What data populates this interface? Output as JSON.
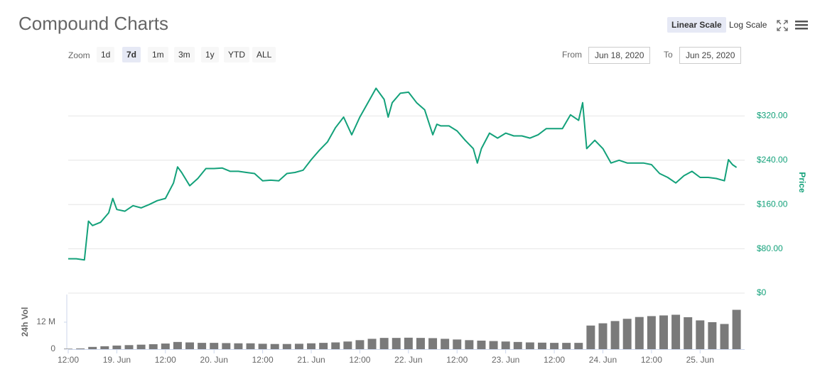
{
  "toolbar": {
    "scale_buttons": [
      "Linear Scale",
      "Log Scale"
    ],
    "zoom_label": "Zoom",
    "zoom_buttons": [
      "1d",
      "7d",
      "1m",
      "3m",
      "1y",
      "YTD",
      "ALL"
    ],
    "from_label": "From",
    "from_value": "Jun 18, 2020",
    "to_label": "To",
    "to_value": "Jun 25, 2020"
  },
  "chart_data": [
    {
      "type": "line",
      "title": "Compound Charts",
      "y_label": "Price",
      "color": "#13a17a",
      "grid": true,
      "xlim": [
        0,
        167
      ],
      "ylim": [
        0,
        400
      ],
      "yticks": [
        {
          "value": 0,
          "label": "$0"
        },
        {
          "value": 80,
          "label": "$80.00"
        },
        {
          "value": 160,
          "label": "$160.00"
        },
        {
          "value": 240,
          "label": "$240.00"
        },
        {
          "value": 320,
          "label": "$320.00"
        }
      ],
      "x": [
        0,
        2,
        4,
        5,
        6,
        8,
        10,
        11,
        12,
        14,
        16,
        18,
        20,
        22,
        24,
        26,
        27,
        28,
        30,
        32,
        34,
        36,
        38,
        40,
        42,
        44,
        46,
        48,
        50,
        52,
        54,
        56,
        58,
        60,
        62,
        64,
        66,
        68,
        70,
        72,
        74,
        76,
        78,
        79,
        80,
        82,
        84,
        86,
        88,
        90,
        91,
        92,
        94,
        96,
        98,
        100,
        101,
        102,
        104,
        106,
        108,
        110,
        112,
        114,
        116,
        118,
        120,
        122,
        124,
        126,
        127,
        128,
        130,
        132,
        134,
        136,
        138,
        140,
        142,
        144,
        146,
        148,
        150,
        152,
        154,
        156,
        158,
        160,
        162,
        163,
        164,
        165
      ],
      "values": [
        62,
        62,
        60,
        130,
        122,
        128,
        145,
        171,
        151,
        148,
        158,
        154,
        160,
        167,
        171,
        199,
        228,
        218,
        194,
        207,
        225,
        225,
        226,
        220,
        220,
        218,
        216,
        203,
        204,
        203,
        216,
        218,
        222,
        241,
        258,
        273,
        299,
        318,
        286,
        318,
        344,
        370,
        350,
        318,
        344,
        361,
        363,
        344,
        331,
        286,
        305,
        302,
        302,
        293,
        276,
        261,
        235,
        261,
        289,
        280,
        289,
        284,
        284,
        280,
        286,
        297,
        297,
        297,
        322,
        312,
        344,
        261,
        276,
        261,
        235,
        240,
        235,
        235,
        235,
        232,
        216,
        209,
        199,
        212,
        220,
        209,
        209,
        207,
        203,
        241,
        232,
        227
      ]
    },
    {
      "type": "bar",
      "y_label": "24h Vol",
      "color": "#7a7a7a",
      "xlim": [
        0,
        167
      ],
      "ylim": [
        0,
        24.3
      ],
      "yticks": [
        0,
        {
          "value": 12,
          "label": "12 M"
        }
      ],
      "xticks": [
        {
          "value": 0,
          "label": "12:00"
        },
        {
          "value": 12,
          "label": "19. Jun"
        },
        {
          "value": 24,
          "label": "12:00"
        },
        {
          "value": 36,
          "label": "20. Jun"
        },
        {
          "value": 48,
          "label": "12:00"
        },
        {
          "value": 60,
          "label": "21. Jun"
        },
        {
          "value": 72,
          "label": "12:00"
        },
        {
          "value": 84,
          "label": "22. Jun"
        },
        {
          "value": 96,
          "label": "12:00"
        },
        {
          "value": 108,
          "label": "23. Jun"
        },
        {
          "value": 120,
          "label": "12:00"
        },
        {
          "value": 132,
          "label": "24. Jun"
        },
        {
          "value": 144,
          "label": "12:00"
        },
        {
          "value": 156,
          "label": "25. Jun"
        }
      ],
      "x": [
        0,
        3,
        6,
        9,
        12,
        15,
        18,
        21,
        24,
        27,
        30,
        33,
        36,
        39,
        42,
        45,
        48,
        51,
        54,
        57,
        60,
        63,
        66,
        69,
        72,
        75,
        78,
        81,
        84,
        87,
        90,
        93,
        96,
        99,
        102,
        105,
        108,
        111,
        114,
        117,
        120,
        123,
        126,
        129,
        132,
        135,
        138,
        141,
        144,
        147,
        150,
        153,
        156,
        159,
        162,
        165
      ],
      "values": [
        0.2,
        0.3,
        1.0,
        1.3,
        1.6,
        1.8,
        2.0,
        2.2,
        2.5,
        3.2,
        3.0,
        2.8,
        2.8,
        2.7,
        2.6,
        2.6,
        2.4,
        2.3,
        2.3,
        2.4,
        2.6,
        2.8,
        3.0,
        3.4,
        4.0,
        4.6,
        5.0,
        5.0,
        5.1,
        5.0,
        4.9,
        4.6,
        4.3,
        4.0,
        3.8,
        3.6,
        3.4,
        3.2,
        3.0,
        2.9,
        2.8,
        2.8,
        2.8,
        10.5,
        11.5,
        12.5,
        13.5,
        14.3,
        14.7,
        15.0,
        15.3,
        14.2,
        12.8,
        12.0,
        11.2,
        17.5
      ]
    }
  ]
}
